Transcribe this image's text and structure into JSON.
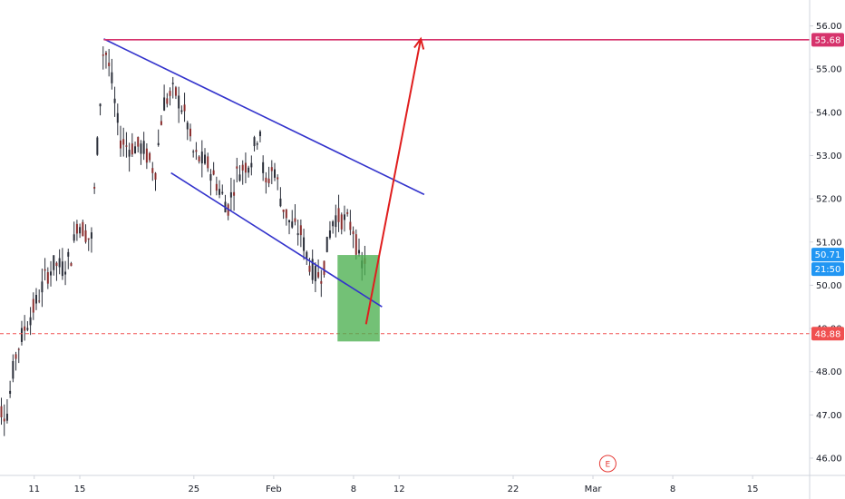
{
  "chart_data": {
    "type": "candlestick",
    "title": "",
    "xlabel": "",
    "ylabel": "",
    "ylim": [
      45.6,
      56.6
    ],
    "y_ticks": [
      "46.00",
      "47.00",
      "48.00",
      "49.00",
      "50.00",
      "51.00",
      "52.00",
      "53.00",
      "54.00",
      "55.00",
      "56.00"
    ],
    "x_ticks": [
      {
        "label": "11",
        "x": 11
      },
      {
        "label": "15",
        "x": 15
      },
      {
        "label": "25",
        "x": 25
      },
      {
        "label": "Feb",
        "x": 32
      },
      {
        "label": "8",
        "x": 39
      },
      {
        "label": "12",
        "x": 43
      },
      {
        "label": "22",
        "x": 53
      },
      {
        "label": "Mar",
        "x": 60
      },
      {
        "label": "8",
        "x": 67
      },
      {
        "label": "15",
        "x": 74
      }
    ],
    "x_axis_unit": "calendar day (Jan 1 = 1, Feb 1 = 32, Mar 1 = 60)",
    "x_range": [
      8,
      79
    ],
    "candle_path": [
      [
        7.1,
        47.2
      ],
      [
        8.3,
        47.1
      ],
      [
        8.6,
        47.0
      ],
      [
        9.3,
        48.3
      ],
      [
        10.0,
        48.9
      ],
      [
        11.5,
        49.8
      ],
      [
        12.0,
        50.2
      ],
      [
        12.8,
        50.5
      ],
      [
        13.5,
        50.4
      ],
      [
        14.3,
        50.7
      ],
      [
        14.8,
        51.5
      ],
      [
        15.3,
        51.3
      ],
      [
        16.0,
        51.0
      ],
      [
        16.6,
        53.5
      ],
      [
        17.1,
        55.6
      ],
      [
        17.7,
        54.9
      ],
      [
        18.5,
        53.4
      ],
      [
        19.2,
        53.2
      ],
      [
        20.5,
        53.2
      ],
      [
        21.6,
        52.6
      ],
      [
        22.3,
        54.2
      ],
      [
        23.3,
        54.5
      ],
      [
        24.3,
        53.9
      ],
      [
        25.0,
        53.0
      ],
      [
        26.2,
        52.8
      ],
      [
        27.1,
        52.3
      ],
      [
        28.0,
        51.8
      ],
      [
        28.8,
        52.6
      ],
      [
        30.0,
        52.9
      ],
      [
        30.8,
        53.7
      ],
      [
        31.2,
        52.2
      ],
      [
        32.0,
        52.8
      ],
      [
        32.7,
        51.9
      ],
      [
        33.5,
        51.4
      ],
      [
        34.4,
        51.2
      ],
      [
        35.0,
        50.6
      ],
      [
        35.7,
        50.2
      ],
      [
        36.3,
        50.3
      ],
      [
        36.9,
        51.2
      ],
      [
        37.3,
        51.6
      ],
      [
        38.3,
        51.5
      ],
      [
        39.0,
        51.3
      ],
      [
        39.6,
        50.4
      ],
      [
        40.2,
        50.7
      ]
    ],
    "candle_range": [
      7.1,
      40.2
    ],
    "trendlines": [
      {
        "name": "upper-wedge-line",
        "color": "#3333cc",
        "from": [
          17.1,
          55.7
        ],
        "to": [
          45.2,
          52.1
        ]
      },
      {
        "name": "lower-wedge-line",
        "color": "#3333cc",
        "from": [
          23.0,
          52.6
        ],
        "to": [
          41.5,
          49.5
        ]
      },
      {
        "name": "resistance-line",
        "color": "#d6336c",
        "from": [
          17.1,
          55.68
        ],
        "to": [
          79.0,
          55.68
        ]
      }
    ],
    "support_level": {
      "value": 48.88,
      "label": "48.88",
      "color": "#f05050",
      "style": "dashed"
    },
    "resistance_level": {
      "value": 55.68,
      "label": "55.68",
      "color": "#d6336c"
    },
    "target_arrow": {
      "color": "#e01e1e",
      "from": [
        40.1,
        49.1
      ],
      "to": [
        44.9,
        55.7
      ]
    },
    "box": {
      "color": "#4caf50",
      "x0": 37.6,
      "x1": 41.3,
      "y0": 48.7,
      "y1": 50.7
    },
    "last_price": {
      "value": 50.71,
      "label": "50.71",
      "countdown": "21:50",
      "color": "#2196f3"
    },
    "earnings_marker": {
      "label": "E",
      "x": 61.3
    },
    "grid": false,
    "legend": "none"
  }
}
